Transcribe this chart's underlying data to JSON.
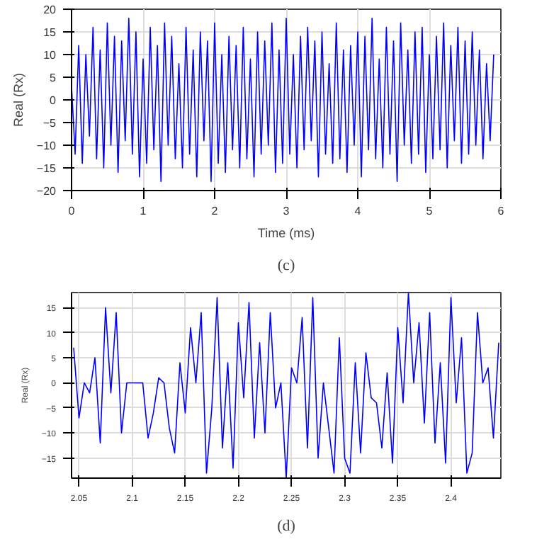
{
  "chart_data": [
    {
      "type": "line",
      "xlabel": "Time (ms)",
      "ylabel": "Real (Rx)",
      "xlim": [
        0,
        6
      ],
      "ylim": [
        -20,
        20
      ],
      "xticks": [
        0,
        1,
        2,
        3,
        4,
        5,
        6
      ],
      "yticks": [
        -20,
        -15,
        -10,
        -5,
        0,
        5,
        10,
        15,
        20
      ],
      "grid": true,
      "annotations": [
        "(c)"
      ],
      "series": [
        {
          "color": "#0000ff",
          "x": [
            0,
            0.05,
            0.1,
            0.15,
            0.2,
            0.25,
            0.3,
            0.35,
            0.4,
            0.45,
            0.5,
            0.55,
            0.6,
            0.65,
            0.7,
            0.75,
            0.8,
            0.85,
            0.9,
            0.95,
            1,
            1.05,
            1.1,
            1.15,
            1.2,
            1.25,
            1.3,
            1.35,
            1.4,
            1.45,
            1.5,
            1.55,
            1.6,
            1.65,
            1.7,
            1.75,
            1.8,
            1.85,
            1.9,
            1.95,
            2,
            2.05,
            2.1,
            2.15,
            2.2,
            2.25,
            2.3,
            2.35,
            2.4,
            2.45,
            2.5,
            2.55,
            2.6,
            2.65,
            2.7,
            2.75,
            2.8,
            2.85,
            2.9,
            2.95,
            3,
            3.05,
            3.1,
            3.15,
            3.2,
            3.25,
            3.3,
            3.35,
            3.4,
            3.45,
            3.5,
            3.55,
            3.6,
            3.65,
            3.7,
            3.75,
            3.8,
            3.85,
            3.9,
            3.95,
            4,
            4.05,
            4.1,
            4.15,
            4.2,
            4.25,
            4.3,
            4.35,
            4.4,
            4.45,
            4.5,
            4.55,
            4.6,
            4.65,
            4.7,
            4.75,
            4.8,
            4.85,
            4.9,
            4.95,
            5,
            5.05,
            5.1,
            5.15,
            5.2,
            5.25,
            5.3,
            5.35,
            5.4,
            5.45,
            5.5,
            5.55,
            5.6,
            5.65,
            5.7,
            5.75,
            5.8,
            5.85,
            5.9
          ],
          "values": [
            3,
            -12,
            12,
            -14,
            10,
            -8,
            16,
            -13,
            11,
            -15,
            17,
            -10,
            14,
            -16,
            13,
            -9,
            18,
            -12,
            15,
            -17,
            9,
            -14,
            16,
            -11,
            12,
            -18,
            17,
            -10,
            14,
            -13,
            8,
            -15,
            16,
            -12,
            11,
            -17,
            15,
            -9,
            13,
            -18,
            17,
            -14,
            10,
            -16,
            14,
            -11,
            12,
            -15,
            16,
            -13,
            9,
            -17,
            15,
            -12,
            13,
            -10,
            17,
            -16,
            11,
            -14,
            18,
            -12,
            10,
            -15,
            14,
            -11,
            16,
            -9,
            13,
            -17,
            15,
            -12,
            8,
            -14,
            17,
            -13,
            11,
            -16,
            12,
            -10,
            15,
            -17,
            14,
            -11,
            18,
            -13,
            9,
            -15,
            16,
            -12,
            13,
            -18,
            17,
            -10,
            11,
            -14,
            15,
            -12,
            16,
            -16,
            10,
            -13,
            14,
            -11,
            17,
            -15,
            12,
            -9,
            16,
            -14,
            13,
            -12,
            15,
            -10,
            11,
            -13,
            8,
            -9,
            10
          ]
        }
      ]
    },
    {
      "type": "line",
      "ylabel": "Real (Rx)",
      "xlim": [
        2.043,
        2.447
      ],
      "ylim": [
        -19,
        18
      ],
      "xticks": [
        2.05,
        2.1,
        2.15,
        2.2,
        2.25,
        2.3,
        2.35,
        2.4
      ],
      "yticks": [
        -15,
        -10,
        -5,
        0,
        5,
        10,
        15
      ],
      "grid": true,
      "annotations": [
        "(d)"
      ],
      "series": [
        {
          "color": "#0000ff",
          "x": [
            2.045,
            2.05,
            2.055,
            2.06,
            2.065,
            2.07,
            2.075,
            2.08,
            2.085,
            2.09,
            2.095,
            2.1,
            2.105,
            2.11,
            2.115,
            2.12,
            2.125,
            2.13,
            2.135,
            2.14,
            2.145,
            2.15,
            2.155,
            2.16,
            2.165,
            2.17,
            2.175,
            2.18,
            2.185,
            2.19,
            2.195,
            2.2,
            2.205,
            2.21,
            2.215,
            2.22,
            2.225,
            2.23,
            2.235,
            2.24,
            2.245,
            2.25,
            2.255,
            2.26,
            2.265,
            2.27,
            2.275,
            2.28,
            2.285,
            2.29,
            2.295,
            2.3,
            2.305,
            2.31,
            2.315,
            2.32,
            2.325,
            2.33,
            2.335,
            2.34,
            2.345,
            2.35,
            2.355,
            2.36,
            2.365,
            2.37,
            2.375,
            2.38,
            2.385,
            2.39,
            2.395,
            2.4,
            2.405,
            2.41,
            2.415,
            2.42,
            2.425,
            2.43,
            2.435,
            2.44,
            2.445
          ],
          "values": [
            7,
            -7,
            0,
            -2,
            5,
            -12,
            15,
            -2,
            14,
            -10,
            0,
            0,
            0,
            0,
            -11,
            -6,
            1,
            0,
            -9,
            -14,
            4,
            -6,
            11,
            0,
            14,
            -18,
            -5,
            17,
            -13,
            4,
            -17,
            12,
            -3,
            16,
            -11,
            8,
            -10,
            14,
            -5,
            0,
            -19,
            3,
            0,
            13,
            -13,
            17,
            -15,
            0,
            -9,
            -18,
            9,
            -15,
            -18,
            4,
            -14,
            6,
            -3,
            -4,
            -13,
            2,
            -16,
            11,
            -4,
            18,
            0,
            12,
            -8,
            14,
            -12,
            4,
            -16,
            17,
            -4,
            9,
            -18,
            -14,
            14,
            0,
            3,
            -11,
            8
          ]
        }
      ]
    }
  ]
}
